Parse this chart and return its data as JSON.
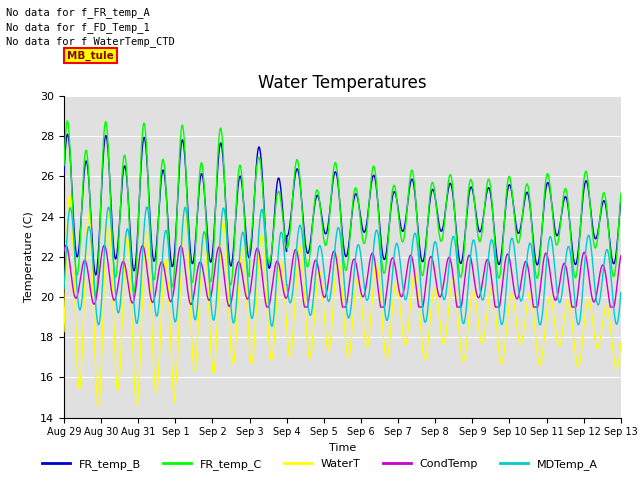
{
  "title": "Water Temperatures",
  "xlabel": "Time",
  "ylabel": "Temperature (C)",
  "ylim": [
    14,
    30
  ],
  "yticks": [
    14,
    16,
    18,
    20,
    22,
    24,
    26,
    28,
    30
  ],
  "background_color": "#e0e0e0",
  "text_annotations": [
    "No data for f_FR_temp_A",
    "No data for f_FD_Temp_1",
    "No data for f_WaterTemp_CTD"
  ],
  "mb_tule_label": "MB_tule",
  "legend_labels": [
    "FR_temp_B",
    "FR_temp_C",
    "WaterT",
    "CondTemp",
    "MDTemp_A"
  ],
  "line_colors": [
    "#0000cc",
    "#00ff00",
    "#ffff00",
    "#cc00cc",
    "#00cccc"
  ],
  "x_tick_labels": [
    "Aug 29",
    "Aug 30",
    "Aug 31",
    "Sep 1",
    "Sep 2",
    "Sep 3",
    "Sep 4",
    "Sep 5",
    "Sep 6",
    "Sep 7",
    "Sep 8",
    "Sep 9",
    "Sep 10",
    "Sep 11",
    "Sep 12",
    "Sep 13"
  ],
  "title_fontsize": 12
}
